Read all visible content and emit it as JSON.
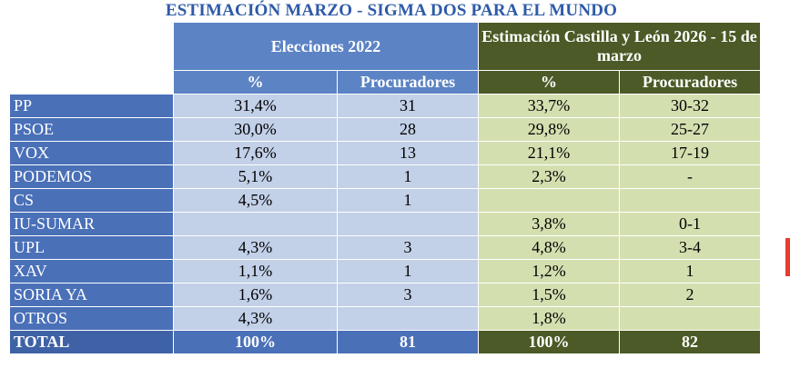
{
  "title": "ESTIMACIÓN MARZO - SIGMA DOS PARA EL MUNDO",
  "headers": {
    "group1": "Elecciones 2022",
    "group2": "Estimación Castilla y León 2026 - 15 de marzo",
    "pct": "%",
    "seats": "Procuradores"
  },
  "rows": [
    {
      "party": "PP",
      "pct2022": "31,4%",
      "seats2022": "31",
      "pct2026": "33,7%",
      "seats2026": "30-32"
    },
    {
      "party": "PSOE",
      "pct2022": "30,0%",
      "seats2022": "28",
      "pct2026": "29,8%",
      "seats2026": "25-27"
    },
    {
      "party": "VOX",
      "pct2022": "17,6%",
      "seats2022": "13",
      "pct2026": "21,1%",
      "seats2026": "17-19"
    },
    {
      "party": "PODEMOS",
      "pct2022": "5,1%",
      "seats2022": "1",
      "pct2026": "2,3%",
      "seats2026": "-"
    },
    {
      "party": "CS",
      "pct2022": "4,5%",
      "seats2022": "1",
      "pct2026": "",
      "seats2026": ""
    },
    {
      "party": "IU-SUMAR",
      "pct2022": "",
      "seats2022": "",
      "pct2026": "3,8%",
      "seats2026": "0-1"
    },
    {
      "party": "UPL",
      "pct2022": "4,3%",
      "seats2022": "3",
      "pct2026": "4,8%",
      "seats2026": "3-4"
    },
    {
      "party": "XAV",
      "pct2022": "1,1%",
      "seats2022": "1",
      "pct2026": "1,2%",
      "seats2026": "1"
    },
    {
      "party": "SORIA YA",
      "pct2022": "1,6%",
      "seats2022": "3",
      "pct2026": "1,5%",
      "seats2026": "2"
    },
    {
      "party": "OTROS",
      "pct2022": "4,3%",
      "seats2022": "",
      "pct2026": "1,8%",
      "seats2026": ""
    }
  ],
  "total": {
    "party": "TOTAL",
    "pct2022": "100%",
    "seats2022": "81",
    "pct2026": "100%",
    "seats2026": "82"
  },
  "colors": {
    "title": "#2e5aa8",
    "blue_header": "#5c83c4",
    "party_col": "#4a70b8",
    "blue_cell": "#c2d0e8",
    "olive_header": "#4b5a26",
    "green_cell": "#d4dfb0"
  }
}
